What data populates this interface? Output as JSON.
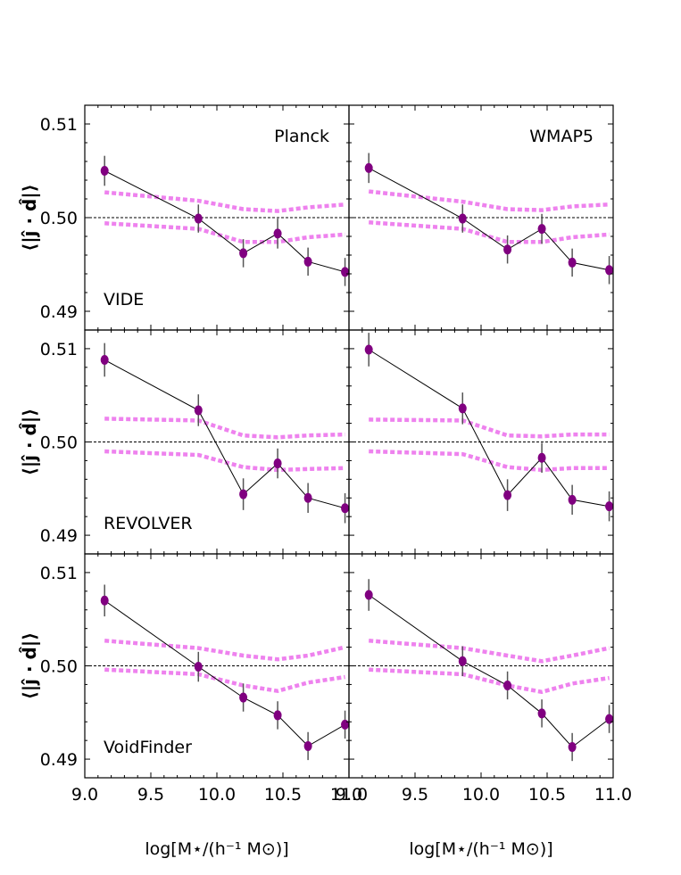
{
  "chart_data": {
    "type": "scatter",
    "layout": "3 rows x 2 columns, shared axes",
    "xlabel": "log[M⋆/(h⁻¹ M⊙)]",
    "ylabel": "⟨|ĵ · d̂|⟩",
    "xlim": [
      9.0,
      11.0
    ],
    "ylim": [
      0.488,
      0.512
    ],
    "xticks": [
      "9.0",
      "9.5",
      "10.0",
      "10.5",
      "11.0"
    ],
    "yticks": [
      "0.49",
      "0.50",
      "0.51"
    ],
    "reference_line": 0.5,
    "series_colors": {
      "points": "#800080",
      "line": "#000000",
      "band": "#ee82ee"
    },
    "column_titles": [
      "Planck",
      "WMAP5"
    ],
    "row_titles": [
      "VIDE",
      "REVOLVER",
      "VoidFinder"
    ],
    "panels": [
      {
        "row": "VIDE",
        "column": "Planck",
        "x": [
          9.15,
          9.86,
          10.2,
          10.46,
          10.69,
          10.97
        ],
        "y": [
          0.505,
          0.4999,
          0.4962,
          0.4983,
          0.4953,
          0.4942
        ],
        "yerr": [
          0.0016,
          0.0015,
          0.0015,
          0.0016,
          0.0015,
          0.0015
        ],
        "band_x": [
          9.15,
          9.86,
          10.2,
          10.46,
          10.69,
          10.97
        ],
        "band_upper": [
          0.5027,
          0.5018,
          0.5009,
          0.5007,
          0.5011,
          0.5014
        ],
        "band_lower": [
          0.4994,
          0.4988,
          0.4974,
          0.4974,
          0.4979,
          0.4982
        ]
      },
      {
        "row": "VIDE",
        "column": "WMAP5",
        "x": [
          9.15,
          9.86,
          10.2,
          10.46,
          10.69,
          10.97
        ],
        "y": [
          0.5053,
          0.4999,
          0.4966,
          0.4988,
          0.4952,
          0.4944
        ],
        "yerr": [
          0.0016,
          0.0015,
          0.0015,
          0.0016,
          0.0015,
          0.0015
        ],
        "band_x": [
          9.15,
          9.86,
          10.2,
          10.46,
          10.69,
          10.97
        ],
        "band_upper": [
          0.5028,
          0.5017,
          0.5009,
          0.5008,
          0.5012,
          0.5014
        ],
        "band_lower": [
          0.4995,
          0.4988,
          0.4974,
          0.4974,
          0.4979,
          0.4982
        ]
      },
      {
        "row": "REVOLVER",
        "column": "Planck",
        "x": [
          9.15,
          9.86,
          10.2,
          10.46,
          10.69,
          10.97
        ],
        "y": [
          0.5088,
          0.5034,
          0.4944,
          0.4977,
          0.494,
          0.4929
        ],
        "yerr": [
          0.0018,
          0.0017,
          0.0017,
          0.0016,
          0.0016,
          0.0016
        ],
        "band_x": [
          9.15,
          9.86,
          10.2,
          10.46,
          10.69,
          10.97
        ],
        "band_upper": [
          0.5025,
          0.5023,
          0.5007,
          0.5005,
          0.5007,
          0.5008
        ],
        "band_lower": [
          0.499,
          0.4986,
          0.4973,
          0.497,
          0.4971,
          0.4972
        ]
      },
      {
        "row": "REVOLVER",
        "column": "WMAP5",
        "x": [
          9.15,
          9.86,
          10.2,
          10.46,
          10.69,
          10.97
        ],
        "y": [
          0.5099,
          0.5036,
          0.4943,
          0.4983,
          0.4938,
          0.4931
        ],
        "yerr": [
          0.0018,
          0.0017,
          0.0017,
          0.0016,
          0.0016,
          0.0016
        ],
        "band_x": [
          9.15,
          9.86,
          10.2,
          10.46,
          10.69,
          10.97
        ],
        "band_upper": [
          0.5024,
          0.5023,
          0.5007,
          0.5006,
          0.5008,
          0.5008
        ],
        "band_lower": [
          0.499,
          0.4987,
          0.4973,
          0.497,
          0.4972,
          0.4972
        ]
      },
      {
        "row": "VoidFinder",
        "column": "Planck",
        "x": [
          9.15,
          9.86,
          10.2,
          10.46,
          10.69,
          10.97
        ],
        "y": [
          0.507,
          0.4999,
          0.4966,
          0.4947,
          0.4914,
          0.4937
        ],
        "yerr": [
          0.0017,
          0.0016,
          0.0015,
          0.0015,
          0.0015,
          0.0015
        ],
        "band_x": [
          9.15,
          9.86,
          10.2,
          10.46,
          10.69,
          10.97
        ],
        "band_upper": [
          0.5027,
          0.5019,
          0.5011,
          0.5007,
          0.5011,
          0.502
        ],
        "band_lower": [
          0.4996,
          0.4991,
          0.4979,
          0.4973,
          0.4982,
          0.4988
        ]
      },
      {
        "row": "VoidFinder",
        "column": "WMAP5",
        "x": [
          9.15,
          9.86,
          10.2,
          10.46,
          10.69,
          10.97
        ],
        "y": [
          0.5076,
          0.5005,
          0.4979,
          0.4949,
          0.4913,
          0.4943
        ],
        "yerr": [
          0.0017,
          0.0016,
          0.0015,
          0.0015,
          0.0015,
          0.0015
        ],
        "band_x": [
          9.15,
          9.86,
          10.2,
          10.46,
          10.69,
          10.97
        ],
        "band_upper": [
          0.5027,
          0.5019,
          0.5011,
          0.5005,
          0.5011,
          0.5019
        ],
        "band_lower": [
          0.4996,
          0.4991,
          0.4979,
          0.4972,
          0.4981,
          0.4987
        ]
      }
    ]
  }
}
